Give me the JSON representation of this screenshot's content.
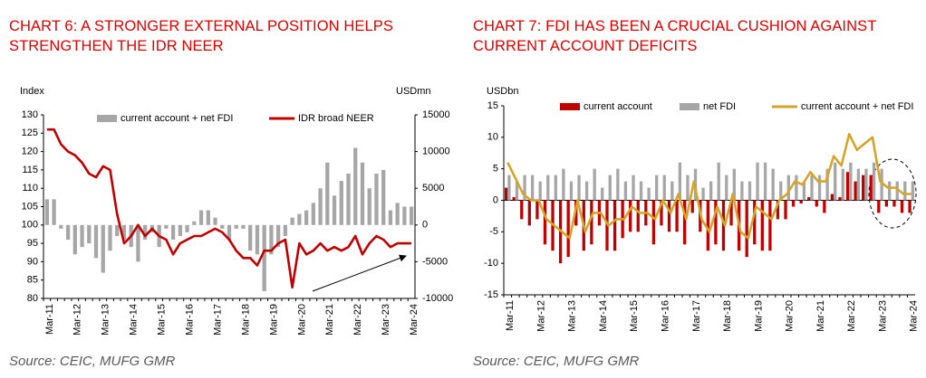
{
  "chart_data": [
    {
      "type": "combo",
      "title": "CHART 6: A STRONGER EXTERNAL POSITION HELPS STRENGTHEN THE IDR NEER",
      "source": "Source: CEIC, MUFG GMR",
      "ylabel": "Index",
      "y2label": "USDmn",
      "categories": [
        "Mar-11",
        null,
        null,
        null,
        "Mar-12",
        null,
        null,
        null,
        "Mar-13",
        null,
        null,
        null,
        "Mar-14",
        null,
        null,
        null,
        "Mar-15",
        null,
        null,
        null,
        "Mar-16",
        null,
        null,
        null,
        "Mar-17",
        null,
        null,
        null,
        "Mar-18",
        null,
        null,
        null,
        "Mar-19",
        null,
        null,
        null,
        "Mar-20",
        null,
        null,
        null,
        "Mar-21",
        null,
        null,
        null,
        "Mar-22",
        null,
        null,
        null,
        "Mar-23",
        null,
        null,
        null,
        "Mar-24"
      ],
      "series": [
        {
          "name": "current account + net FDI",
          "color": "#a6a6a6",
          "type": "bar",
          "axis": "y2",
          "values": [
            3500,
            3500,
            -500,
            -2000,
            -4000,
            -3000,
            -2500,
            -4500,
            -6500,
            -3500,
            -1500,
            -2000,
            -3000,
            -5000,
            -2000,
            -1000,
            -3000,
            -500,
            -2000,
            -1500,
            -1000,
            500,
            2000,
            2000,
            1000,
            -500,
            -2000,
            -500,
            -500,
            -3500,
            -4000,
            -9000,
            -4000,
            -3000,
            -1500,
            1000,
            1500,
            2000,
            3000,
            5000,
            8500,
            4000,
            6000,
            7000,
            10500,
            8500,
            5000,
            7000,
            7500,
            2000,
            3000,
            2500,
            2500
          ]
        },
        {
          "name": "IDR broad NEER",
          "color": "#c00000",
          "type": "line",
          "values": [
            126,
            126,
            122,
            120,
            119,
            117,
            114,
            113,
            116,
            115,
            103,
            95,
            97,
            100,
            97,
            99,
            97,
            96,
            92,
            95,
            96,
            97,
            97,
            98,
            99,
            98,
            96,
            93,
            91,
            91,
            89,
            93,
            93,
            95,
            96,
            83,
            95,
            92,
            93,
            95,
            93,
            94,
            93,
            94,
            97,
            92,
            95,
            97,
            96,
            94,
            95,
            95,
            95
          ]
        }
      ],
      "ylim": [
        80,
        130
      ],
      "yticks": [
        80,
        85,
        90,
        95,
        100,
        105,
        110,
        115,
        120,
        125,
        130
      ],
      "y2lim": [
        -10000,
        15000
      ],
      "y2ticks": [
        -10000,
        -5000,
        0,
        5000,
        10000,
        15000
      ],
      "grid": false
    },
    {
      "type": "combo",
      "title": "CHART 7: FDI HAS BEEN A CRUCIAL CUSHION AGAINST CURRENT ACCOUNT DEFICITS",
      "source": "Source: CEIC, MUFG GMR",
      "ylabel": "USDbn",
      "categories": [
        "Mar-11",
        null,
        null,
        null,
        "Mar-12",
        null,
        null,
        null,
        "Mar-13",
        null,
        null,
        null,
        "Mar-14",
        null,
        null,
        null,
        "Mar-15",
        null,
        null,
        null,
        "Mar-16",
        null,
        null,
        null,
        "Mar-17",
        null,
        null,
        null,
        "Mar-18",
        null,
        null,
        null,
        "Mar-19",
        null,
        null,
        null,
        "Mar-20",
        null,
        null,
        null,
        "Mar-21",
        null,
        null,
        null,
        "Mar-22",
        null,
        null,
        null,
        "Mar-23",
        null,
        null,
        null,
        "Mar-24"
      ],
      "series": [
        {
          "name": "current account",
          "color": "#c00000",
          "type": "bar",
          "values": [
            2,
            0.5,
            -3,
            -4,
            -3,
            -7,
            -8,
            -10,
            -9,
            -4,
            -8,
            -7,
            -4,
            -8,
            -8,
            -6,
            -5,
            -5,
            -4,
            -7,
            -4,
            -5,
            -5,
            -7,
            -2,
            -5,
            -8,
            -7,
            -8,
            -4,
            -8,
            -9,
            -7,
            -8,
            -8,
            -3,
            -3,
            -1,
            -0.5,
            0.5,
            -1,
            -2,
            1,
            0.5,
            4.5,
            3,
            4,
            4,
            -2,
            -1,
            -1,
            -2,
            -2
          ]
        },
        {
          "name": "net FDI",
          "color": "#a6a6a6",
          "type": "bar",
          "values": [
            4,
            3,
            4,
            4,
            3,
            4,
            4,
            5,
            3,
            4,
            3,
            5,
            2,
            4,
            5,
            3,
            4,
            3,
            2,
            4,
            4,
            3,
            6,
            4,
            5,
            2,
            3,
            6,
            4,
            5,
            3,
            3,
            6,
            6,
            5,
            3,
            4,
            4,
            3,
            4,
            4,
            5,
            6,
            5,
            6,
            5,
            5,
            6,
            5,
            3,
            3,
            3,
            3
          ]
        },
        {
          "name": "current account + net FDI",
          "color": "#d4a528",
          "type": "line",
          "values": [
            6,
            3.5,
            1,
            0,
            0,
            -3,
            -4,
            -5,
            -6,
            0,
            -5,
            -2,
            -2,
            -4,
            -3,
            -3,
            -1,
            -2,
            -2,
            -3,
            0,
            -2,
            1,
            -3,
            3,
            -3,
            -5,
            -1,
            -4,
            1,
            -5,
            -6,
            -1,
            -2,
            -3,
            0,
            1,
            3,
            2.5,
            4.5,
            3,
            3,
            7,
            5.5,
            10.5,
            8,
            9,
            10,
            3,
            2,
            2,
            1,
            1
          ]
        }
      ],
      "ylim": [
        -15,
        15
      ],
      "yticks": [
        -15,
        -10,
        -5,
        0,
        5,
        10,
        15
      ],
      "grid": false
    }
  ]
}
